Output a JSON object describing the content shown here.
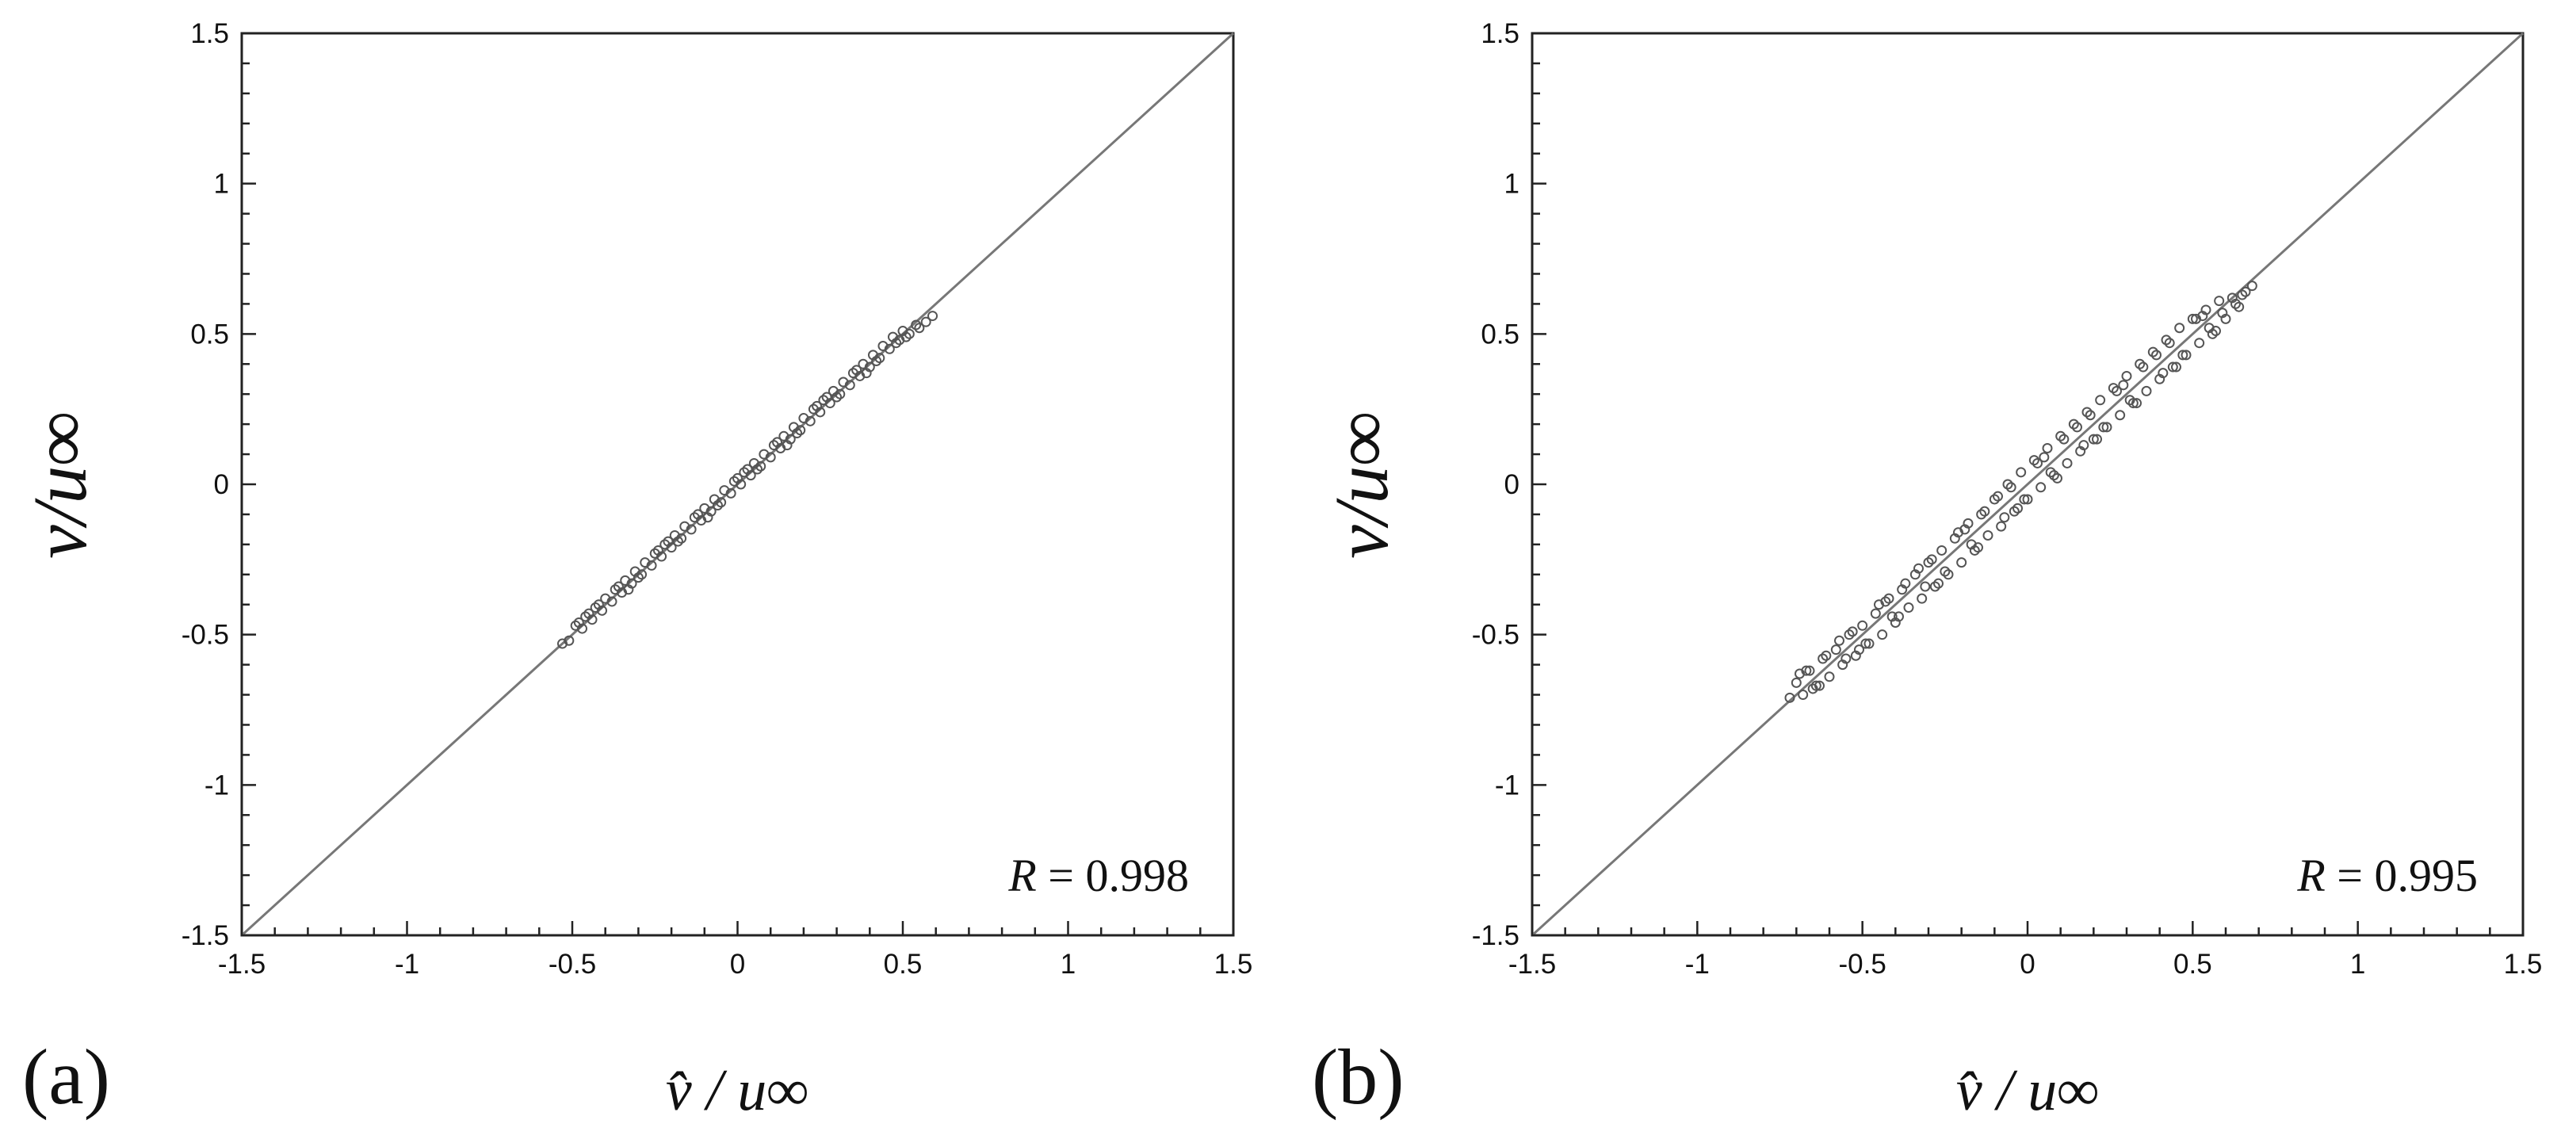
{
  "colors": {
    "axis": "#222222",
    "refline": "#777777",
    "marker_stroke": "#555555"
  },
  "chart_data": [
    {
      "type": "scatter",
      "panel_label": "(a)",
      "xlabel": "v̂ / u∞",
      "ylabel": "v/u∞",
      "xlim": [
        -1.5,
        1.5
      ],
      "ylim": [
        -1.5,
        1.5
      ],
      "xticks": [
        "-1.5",
        "-1",
        "-0.5",
        "0",
        "0.5",
        "1",
        "1.5"
      ],
      "yticks": [
        "-1.5",
        "-1",
        "-0.5",
        "0",
        "0.5",
        "1",
        "1.5"
      ],
      "annotation": {
        "italic": "R",
        "text": " = 0.998"
      },
      "reference_line": "y = x",
      "marker": "hollow-circle",
      "grid": false,
      "series": [
        {
          "x": [
            -0.53,
            -0.51,
            -0.49,
            -0.47,
            -0.46,
            -0.44,
            -0.43,
            -0.41,
            -0.4,
            -0.38,
            -0.37,
            -0.35,
            -0.34,
            -0.32,
            -0.31,
            -0.29,
            -0.28,
            -0.26,
            -0.25,
            -0.23,
            -0.22,
            -0.2,
            -0.19,
            -0.17,
            -0.16,
            -0.14,
            -0.13,
            -0.11,
            -0.1,
            -0.08,
            -0.07,
            -0.05,
            -0.04,
            -0.02,
            -0.01,
            0.01,
            0.02,
            0.04,
            0.05,
            0.07,
            0.08,
            0.1,
            0.11,
            0.13,
            0.14,
            0.16,
            0.17,
            0.19,
            0.2,
            0.22,
            0.23,
            0.25,
            0.26,
            0.28,
            0.29,
            0.31,
            0.32,
            0.34,
            0.35,
            0.37,
            0.38,
            0.4,
            0.41,
            0.43,
            0.44,
            0.46,
            0.47,
            0.49,
            0.5,
            0.52,
            0.54,
            0.55,
            0.57,
            0.59,
            -0.48,
            -0.42,
            -0.36,
            -0.3,
            -0.24,
            -0.18,
            -0.12,
            -0.06,
            0.0,
            0.06,
            0.12,
            0.18,
            0.24,
            0.3,
            0.36,
            0.42,
            0.48,
            -0.45,
            -0.33,
            -0.21,
            -0.09,
            0.03,
            0.15,
            0.27,
            0.39,
            0.51
          ],
          "y": [
            -0.53,
            -0.52,
            -0.47,
            -0.48,
            -0.44,
            -0.45,
            -0.41,
            -0.42,
            -0.38,
            -0.39,
            -0.35,
            -0.36,
            -0.32,
            -0.33,
            -0.29,
            -0.3,
            -0.26,
            -0.27,
            -0.23,
            -0.24,
            -0.2,
            -0.21,
            -0.17,
            -0.18,
            -0.14,
            -0.15,
            -0.11,
            -0.12,
            -0.08,
            -0.09,
            -0.05,
            -0.06,
            -0.02,
            -0.03,
            0.01,
            0.0,
            0.04,
            0.03,
            0.07,
            0.06,
            0.1,
            0.09,
            0.13,
            0.12,
            0.16,
            0.15,
            0.19,
            0.18,
            0.22,
            0.21,
            0.25,
            0.24,
            0.28,
            0.27,
            0.31,
            0.3,
            0.34,
            0.33,
            0.37,
            0.36,
            0.4,
            0.39,
            0.43,
            0.42,
            0.46,
            0.45,
            0.49,
            0.48,
            0.51,
            0.5,
            0.53,
            0.52,
            0.54,
            0.56,
            -0.46,
            -0.4,
            -0.34,
            -0.31,
            -0.22,
            -0.19,
            -0.1,
            -0.07,
            0.02,
            0.05,
            0.14,
            0.17,
            0.26,
            0.29,
            0.38,
            0.41,
            0.47,
            -0.43,
            -0.35,
            -0.19,
            -0.11,
            0.05,
            0.13,
            0.29,
            0.37,
            0.49
          ]
        }
      ]
    },
    {
      "type": "scatter",
      "panel_label": "(b)",
      "xlabel": "v̂ / u∞",
      "ylabel": "v/u∞",
      "xlim": [
        -1.5,
        1.5
      ],
      "ylim": [
        -1.5,
        1.5
      ],
      "xticks": [
        "-1.5",
        "-1",
        "-0.5",
        "0",
        "0.5",
        "1",
        "1.5"
      ],
      "yticks": [
        "-1.5",
        "-1",
        "-0.5",
        "0",
        "0.5",
        "1",
        "1.5"
      ],
      "annotation": {
        "italic": "R",
        "text": " = 0.995"
      },
      "reference_line": "y = x",
      "marker": "hollow-circle",
      "grid": false,
      "series": [
        {
          "x": [
            -0.72,
            -0.7,
            -0.68,
            -0.66,
            -0.64,
            -0.62,
            -0.6,
            -0.58,
            -0.56,
            -0.54,
            -0.52,
            -0.5,
            -0.48,
            -0.46,
            -0.44,
            -0.42,
            -0.4,
            -0.38,
            -0.36,
            -0.34,
            -0.32,
            -0.3,
            -0.28,
            -0.26,
            -0.24,
            -0.22,
            -0.2,
            -0.18,
            -0.16,
            -0.14,
            -0.12,
            -0.1,
            -0.08,
            -0.06,
            -0.04,
            -0.02,
            0.0,
            0.02,
            0.04,
            0.06,
            0.08,
            0.1,
            0.12,
            0.14,
            0.16,
            0.18,
            0.2,
            0.22,
            0.24,
            0.26,
            0.28,
            0.3,
            0.32,
            0.34,
            0.36,
            0.38,
            0.4,
            0.42,
            0.44,
            0.46,
            0.48,
            0.5,
            0.52,
            0.54,
            0.56,
            0.58,
            0.6,
            0.62,
            0.64,
            0.66,
            0.68,
            -0.69,
            -0.63,
            -0.57,
            -0.51,
            -0.45,
            -0.39,
            -0.33,
            -0.27,
            -0.21,
            -0.15,
            -0.09,
            -0.03,
            0.03,
            0.09,
            0.15,
            0.21,
            0.27,
            0.33,
            0.39,
            0.45,
            0.51,
            0.57,
            0.63,
            -0.67,
            -0.55,
            -0.43,
            -0.31,
            -0.19,
            -0.07,
            0.05,
            0.17,
            0.29,
            0.41,
            0.53,
            0.65,
            -0.61,
            -0.49,
            -0.37,
            -0.25,
            -0.13,
            -0.01,
            0.11,
            0.23,
            0.35,
            0.47,
            0.59,
            -0.65,
            -0.53,
            -0.41,
            -0.29,
            -0.17,
            -0.05,
            0.07,
            0.19,
            0.31,
            0.43,
            0.55
          ],
          "y": [
            -0.71,
            -0.66,
            -0.7,
            -0.62,
            -0.67,
            -0.58,
            -0.64,
            -0.55,
            -0.6,
            -0.5,
            -0.57,
            -0.47,
            -0.53,
            -0.43,
            -0.5,
            -0.38,
            -0.46,
            -0.35,
            -0.41,
            -0.3,
            -0.38,
            -0.26,
            -0.34,
            -0.22,
            -0.3,
            -0.18,
            -0.26,
            -0.13,
            -0.22,
            -0.1,
            -0.17,
            -0.05,
            -0.14,
            0.0,
            -0.09,
            0.04,
            -0.05,
            0.08,
            -0.01,
            0.12,
            0.03,
            0.16,
            0.07,
            0.2,
            0.11,
            0.24,
            0.15,
            0.28,
            0.19,
            0.32,
            0.23,
            0.36,
            0.27,
            0.4,
            0.31,
            0.44,
            0.35,
            0.48,
            0.39,
            0.52,
            0.43,
            0.55,
            0.47,
            0.58,
            0.5,
            0.61,
            0.55,
            0.62,
            0.59,
            0.64,
            0.66,
            -0.63,
            -0.67,
            -0.52,
            -0.55,
            -0.4,
            -0.44,
            -0.28,
            -0.33,
            -0.16,
            -0.21,
            -0.04,
            -0.08,
            0.07,
            0.02,
            0.19,
            0.15,
            0.31,
            0.27,
            0.43,
            0.39,
            0.55,
            0.51,
            0.6,
            -0.62,
            -0.58,
            -0.39,
            -0.34,
            -0.15,
            -0.11,
            0.09,
            0.13,
            0.33,
            0.37,
            0.56,
            0.63,
            -0.57,
            -0.53,
            -0.33,
            -0.29,
            -0.09,
            -0.05,
            0.15,
            0.19,
            0.39,
            0.43,
            0.57,
            -0.68,
            -0.49,
            -0.44,
            -0.25,
            -0.2,
            -0.01,
            0.04,
            0.23,
            0.28,
            0.47,
            0.52
          ]
        }
      ]
    }
  ]
}
